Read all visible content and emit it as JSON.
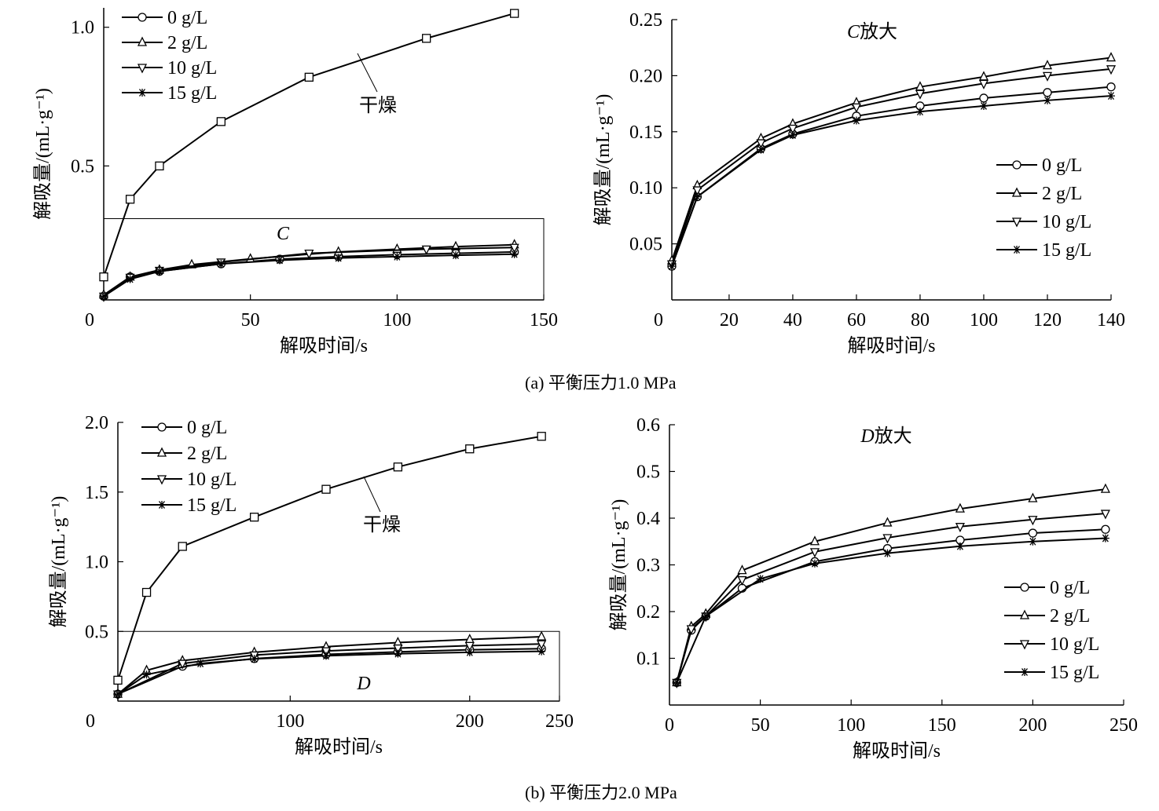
{
  "captions": [
    "(a)  平衡压力1.0 MPa",
    "(b)  平衡压力2.0 MPa"
  ],
  "chart_data": [
    {
      "id": "a-main",
      "type": "line",
      "xlabel": "解吸时间/s",
      "ylabel": "解吸量/(mL·g⁻¹)",
      "xlim": [
        0,
        150
      ],
      "ylim": [
        0,
        1.05
      ],
      "xticks": [
        0,
        50,
        100,
        150
      ],
      "yticks": [
        0.5,
        1.0
      ],
      "ytick_labels": [
        "0.5",
        "1.0"
      ],
      "legend_position": "top-left",
      "annotations": [
        {
          "text": "干燥",
          "target": "干燥"
        },
        {
          "text": "C",
          "italic": true,
          "label_of": "zoom-box"
        }
      ],
      "zoom_box": {
        "x": [
          0,
          150
        ],
        "y": [
          0,
          0.31
        ],
        "label": "C"
      },
      "series": [
        {
          "name": "干燥",
          "marker": "square",
          "in_legend": false,
          "x": [
            0,
            9,
            19,
            40,
            70,
            110,
            140
          ],
          "y": [
            0.1,
            0.38,
            0.5,
            0.66,
            0.82,
            0.96,
            1.05
          ]
        },
        {
          "name": "0 g/L",
          "marker": "circle",
          "x": [
            0,
            9,
            19,
            40,
            60,
            80,
            100,
            120,
            140
          ],
          "y": [
            0.03,
            0.1,
            0.12,
            0.147,
            0.164,
            0.173,
            0.18,
            0.185,
            0.19
          ]
        },
        {
          "name": "2 g/L",
          "marker": "triangle-up",
          "x": [
            0,
            9,
            19,
            30,
            50,
            80,
            100,
            120,
            140
          ],
          "y": [
            0.035,
            0.1,
            0.125,
            0.144,
            0.165,
            0.19,
            0.2,
            0.209,
            0.216
          ]
        },
        {
          "name": "10 g/L",
          "marker": "triangle-down",
          "x": [
            0,
            9,
            19,
            40,
            70,
            110,
            140
          ],
          "y": [
            0.03,
            0.098,
            0.123,
            0.153,
            0.185,
            0.2,
            0.206
          ]
        },
        {
          "name": "15 g/L",
          "marker": "star",
          "x": [
            0,
            9,
            19,
            40,
            60,
            80,
            100,
            120,
            140
          ],
          "y": [
            0.03,
            0.092,
            0.12,
            0.147,
            0.16,
            0.168,
            0.173,
            0.178,
            0.182
          ]
        }
      ]
    },
    {
      "id": "a-zoom",
      "type": "line",
      "title": "C放大",
      "xlabel": "解吸时间/s",
      "ylabel": "解吸量/(mL·g⁻¹)",
      "xlim": [
        0,
        140
      ],
      "ylim": [
        0.0,
        0.25
      ],
      "xticks": [
        0,
        20,
        40,
        60,
        80,
        100,
        120,
        140
      ],
      "yticks": [
        0.05,
        0.1,
        0.15,
        0.2,
        0.25
      ],
      "ytick_labels": [
        "0.05",
        "0.10",
        "0.15",
        "0.20",
        "0.25"
      ],
      "legend_position": "center-right",
      "series": [
        {
          "name": "0 g/L",
          "marker": "circle",
          "x": [
            2,
            10,
            30,
            40,
            60,
            80,
            100,
            120,
            140
          ],
          "y": [
            0.03,
            0.092,
            0.135,
            0.148,
            0.164,
            0.173,
            0.18,
            0.185,
            0.19
          ]
        },
        {
          "name": "2 g/L",
          "marker": "triangle-up",
          "x": [
            2,
            10,
            30,
            40,
            60,
            80,
            100,
            120,
            140
          ],
          "y": [
            0.035,
            0.102,
            0.144,
            0.157,
            0.176,
            0.19,
            0.199,
            0.209,
            0.216
          ]
        },
        {
          "name": "10 g/L",
          "marker": "triangle-down",
          "x": [
            2,
            10,
            30,
            40,
            60,
            80,
            100,
            120,
            140
          ],
          "y": [
            0.032,
            0.098,
            0.14,
            0.153,
            0.172,
            0.184,
            0.193,
            0.2,
            0.206
          ]
        },
        {
          "name": "15 g/L",
          "marker": "star",
          "x": [
            2,
            10,
            30,
            40,
            60,
            80,
            100,
            120,
            140
          ],
          "y": [
            0.03,
            0.092,
            0.134,
            0.147,
            0.16,
            0.168,
            0.173,
            0.178,
            0.182
          ]
        }
      ]
    },
    {
      "id": "b-main",
      "type": "line",
      "xlabel": "解吸时间/s",
      "ylabel": "解吸量/(mL·g⁻¹)",
      "xlim": [
        0,
        250
      ],
      "ylim": [
        0,
        2.0
      ],
      "xticks": [
        0,
        100,
        200,
        250
      ],
      "yticks": [
        0.5,
        1.0,
        1.5,
        2.0
      ],
      "ytick_labels": [
        "0.5",
        "1.0",
        "1.5",
        "2.0"
      ],
      "legend_position": "top-left",
      "annotations": [
        {
          "text": "干燥",
          "target": "干燥"
        },
        {
          "text": "D",
          "italic": true,
          "label_of": "zoom-box"
        }
      ],
      "zoom_box": {
        "x": [
          0,
          250
        ],
        "y": [
          0,
          0.5
        ],
        "label": "D"
      },
      "series": [
        {
          "name": "干燥",
          "marker": "square",
          "in_legend": false,
          "x": [
            4,
            20,
            40,
            80,
            120,
            160,
            200,
            240
          ],
          "y": [
            0.15,
            0.78,
            1.11,
            1.32,
            1.52,
            1.68,
            1.81,
            1.9
          ]
        },
        {
          "name": "0 g/L",
          "marker": "circle",
          "x": [
            4,
            40,
            80,
            120,
            160,
            200,
            240
          ],
          "y": [
            0.05,
            0.25,
            0.305,
            0.335,
            0.353,
            0.368,
            0.376
          ]
        },
        {
          "name": "2 g/L",
          "marker": "triangle-up",
          "x": [
            4,
            20,
            40,
            80,
            120,
            160,
            200,
            240
          ],
          "y": [
            0.05,
            0.22,
            0.29,
            0.35,
            0.39,
            0.42,
            0.442,
            0.462
          ]
        },
        {
          "name": "10 g/L",
          "marker": "triangle-down",
          "x": [
            4,
            40,
            80,
            120,
            160,
            200,
            240
          ],
          "y": [
            0.05,
            0.27,
            0.33,
            0.36,
            0.38,
            0.398,
            0.41
          ]
        },
        {
          "name": "15 g/L",
          "marker": "star",
          "x": [
            4,
            20,
            50,
            80,
            120,
            160,
            200,
            240
          ],
          "y": [
            0.05,
            0.19,
            0.27,
            0.303,
            0.325,
            0.34,
            0.35,
            0.357
          ]
        }
      ]
    },
    {
      "id": "b-zoom",
      "type": "line",
      "title": "D放大",
      "xlabel": "解吸时间/s",
      "ylabel": "解吸量/(mL·g⁻¹)",
      "xlim": [
        0,
        250
      ],
      "ylim": [
        0.0,
        0.6
      ],
      "xticks": [
        0,
        50,
        100,
        150,
        200,
        250
      ],
      "yticks": [
        0.1,
        0.2,
        0.3,
        0.4,
        0.5,
        0.6
      ],
      "ytick_labels": [
        "0.1",
        "0.2",
        "0.3",
        "0.4",
        "0.5",
        "0.6"
      ],
      "legend_position": "bottom-right",
      "series": [
        {
          "name": "0 g/L",
          "marker": "circle",
          "x": [
            4,
            12,
            20,
            40,
            80,
            120,
            160,
            200,
            240
          ],
          "y": [
            0.048,
            0.16,
            0.19,
            0.25,
            0.307,
            0.335,
            0.353,
            0.368,
            0.376
          ]
        },
        {
          "name": "2 g/L",
          "marker": "triangle-up",
          "x": [
            4,
            12,
            20,
            40,
            80,
            120,
            160,
            200,
            240
          ],
          "y": [
            0.048,
            0.168,
            0.195,
            0.288,
            0.35,
            0.39,
            0.42,
            0.442,
            0.462
          ]
        },
        {
          "name": "10 g/L",
          "marker": "triangle-down",
          "x": [
            4,
            12,
            20,
            40,
            80,
            120,
            160,
            200,
            240
          ],
          "y": [
            0.048,
            0.163,
            0.19,
            0.268,
            0.328,
            0.358,
            0.382,
            0.397,
            0.41
          ]
        },
        {
          "name": "15 g/L",
          "marker": "star",
          "x": [
            4,
            20,
            50,
            80,
            120,
            160,
            200,
            240
          ],
          "y": [
            0.048,
            0.19,
            0.27,
            0.303,
            0.325,
            0.34,
            0.35,
            0.357
          ]
        }
      ]
    }
  ]
}
